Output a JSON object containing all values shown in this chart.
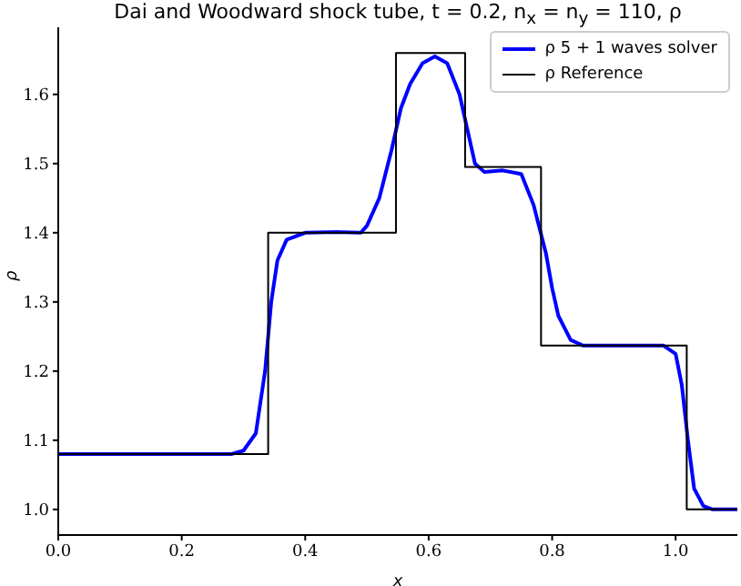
{
  "chart_data": {
    "type": "line",
    "title": "Dai and Woodward shock tube, t = 0.2, n$_{x}$ = n$_{y}$ = 110, ρ",
    "xlabel": "x",
    "ylabel": "ρ",
    "xlim": [
      0,
      1.1
    ],
    "ylim": [
      0.963,
      1.697
    ],
    "xticks": [
      {
        "value": 0,
        "label": "0.0"
      },
      {
        "value": 0.2,
        "label": "0.2"
      },
      {
        "value": 0.4,
        "label": "0.4"
      },
      {
        "value": 0.6,
        "label": "0.6"
      },
      {
        "value": 0.8,
        "label": "0.8"
      },
      {
        "value": 1,
        "label": "1.0"
      }
    ],
    "yticks": [
      {
        "value": 1,
        "label": "1.0"
      },
      {
        "value": 1.1,
        "label": "1.1"
      },
      {
        "value": 1.2,
        "label": "1.2"
      },
      {
        "value": 1.3,
        "label": "1.3"
      },
      {
        "value": 1.4,
        "label": "1.4"
      },
      {
        "value": 1.5,
        "label": "1.5"
      },
      {
        "value": 1.6,
        "label": "1.6"
      }
    ],
    "grid": false,
    "legend": "top right",
    "marker": "none",
    "line_style": "solid",
    "series": [
      {
        "name": "ρ 5 + 1 waves solver",
        "color": "#0000ff",
        "x": [
          0,
          0.28,
          0.3,
          0.32,
          0.335,
          0.345,
          0.355,
          0.37,
          0.4,
          0.45,
          0.49,
          0.5,
          0.52,
          0.54,
          0.555,
          0.57,
          0.59,
          0.61,
          0.63,
          0.65,
          0.665,
          0.675,
          0.69,
          0.72,
          0.75,
          0.77,
          0.79,
          0.8,
          0.81,
          0.83,
          0.85,
          0.98,
          1,
          1.01,
          1.02,
          1.03,
          1.045,
          1.06,
          1.1
        ],
        "values": [
          1.08,
          1.08,
          1.085,
          1.11,
          1.2,
          1.3,
          1.36,
          1.39,
          1.4,
          1.401,
          1.4,
          1.41,
          1.45,
          1.52,
          1.58,
          1.615,
          1.645,
          1.655,
          1.645,
          1.6,
          1.54,
          1.5,
          1.488,
          1.49,
          1.485,
          1.44,
          1.37,
          1.32,
          1.28,
          1.245,
          1.237,
          1.237,
          1.225,
          1.18,
          1.1,
          1.03,
          1.005,
          1,
          1
        ]
      },
      {
        "name": "ρ Reference",
        "color": "#000000",
        "x": [
          0,
          0.34,
          0.34,
          0.547,
          0.547,
          0.659,
          0.659,
          0.782,
          0.782,
          1.018,
          1.018,
          1.1
        ],
        "values": [
          1.08,
          1.08,
          1.4,
          1.4,
          1.66,
          1.66,
          1.495,
          1.495,
          1.237,
          1.237,
          1,
          1
        ]
      }
    ]
  }
}
